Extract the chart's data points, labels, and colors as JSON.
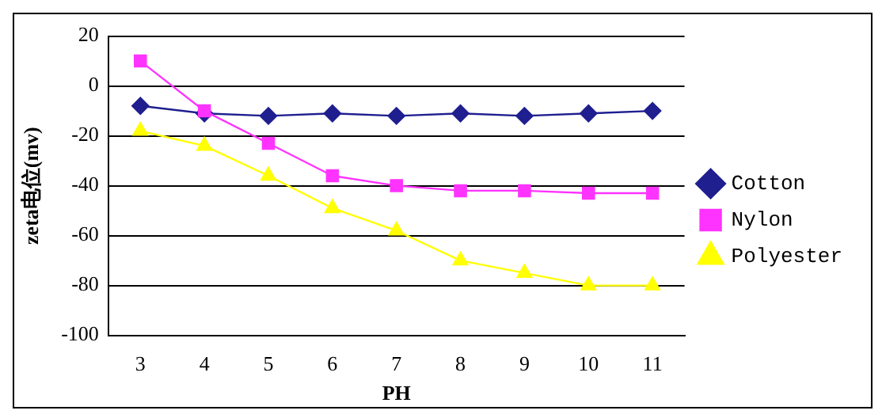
{
  "chart_data": {
    "type": "line",
    "xlabel": "PH",
    "ylabel": "zeta电位(mv)",
    "categories": [
      "3",
      "4",
      "5",
      "6",
      "7",
      "8",
      "9",
      "10",
      "11"
    ],
    "series": [
      {
        "name": "Cotton",
        "color": "#1f1f8f",
        "marker": "diamond",
        "values": [
          -8,
          -11,
          -12,
          -11,
          -12,
          -11,
          -12,
          -11,
          -10
        ]
      },
      {
        "name": "Nylon",
        "color": "#ff33ff",
        "marker": "square",
        "values": [
          10,
          -10,
          -23,
          -36,
          -40,
          -42,
          -42,
          -43,
          -43
        ]
      },
      {
        "name": "Polyester",
        "color": "#ffff00",
        "marker": "triangle",
        "values": [
          -18,
          -24,
          -36,
          -49,
          -58,
          -70,
          -75,
          -80,
          -80
        ]
      }
    ],
    "ylim": [
      -100,
      20
    ],
    "yticks": [
      -100,
      -80,
      -60,
      -40,
      -20,
      0,
      20
    ],
    "grid": "y",
    "legend": "right"
  }
}
